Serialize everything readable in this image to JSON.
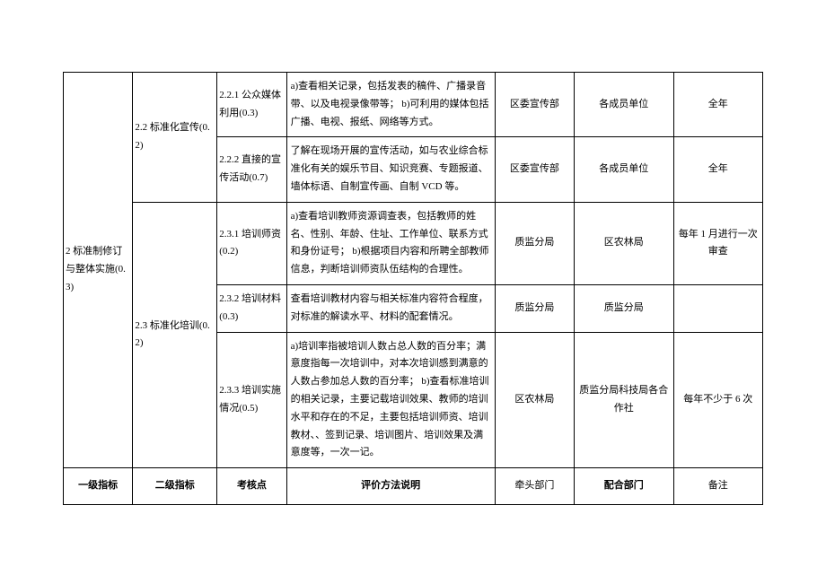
{
  "table": {
    "level1": {
      "label": "2 标准制修订与整体实施(0.3)"
    },
    "level2": {
      "g22": "2.2 标准化宣传(0.2)",
      "g23": "2.3 标准化培训(0.2)"
    },
    "rows": [
      {
        "l3": "2.2.1 公众媒体利用(0.3)",
        "desc": "a)查看相关记录，包括发表的稿件、广播录音带、以及电视录像带等；\nb)可利用的媒体包括广播、电视、报纸、网络等方式。",
        "dept1": "区委宣传部",
        "dept2": "各成员单位",
        "note": "全年"
      },
      {
        "l3": "2.2.2 直接的宣传活动(0.7)",
        "desc": "了解在现场开展的宣传活动，如与农业综合标准化有关的娱乐节目、知识竞赛、专题报道、墙体标语、自制宣传画、自制 VCD 等。",
        "dept1": "区委宣传部",
        "dept2": "各成员单位",
        "note": "全年"
      },
      {
        "l3": "2.3.1 培训师资(0.2)",
        "desc": "a)查看培训教师资源调查表，包括教师的姓名、性别、年龄、住址、工作单位、联系方式和身份证号；\nb)根据项目内容和所聘全部教师信息，判断培训师资队伍结构的合理性。",
        "dept1": "质监分局",
        "dept2": "区农林局",
        "note": "每年 1 月进行一次审查"
      },
      {
        "l3": "2.3.2 培训材料(0.3)",
        "desc": "查看培训教材内容与相关标准内容符合程度，对标准的解读水平、材料的配套情况。",
        "dept1": "质监分局",
        "dept2": "质监分局",
        "note": ""
      },
      {
        "l3": "2.3.3 培训实施情况(0.5)",
        "desc": "a)培训率指被培训人数占总人数的百分率；满意度指每一次培训中，对本次培训感到满意的人数占参加总人数的百分率；\nb)查看标准培训的相关记录，主要记载培训效果、教师的培训水平和存在的不足，主要包括培训师资、培训教材、、签到记录、培训图片、培训效果及满意度等，一次一记。",
        "dept1": "区农林局",
        "dept2": "质监分局科技局各合作社",
        "note": "每年不少于 6 次"
      }
    ],
    "header": {
      "l1": "一级指标",
      "l2": "二级指标",
      "l3": "考核点",
      "desc": "评价方法说明",
      "dept1": "牵头部门",
      "dept2": "配合部门",
      "note": "备注"
    }
  }
}
